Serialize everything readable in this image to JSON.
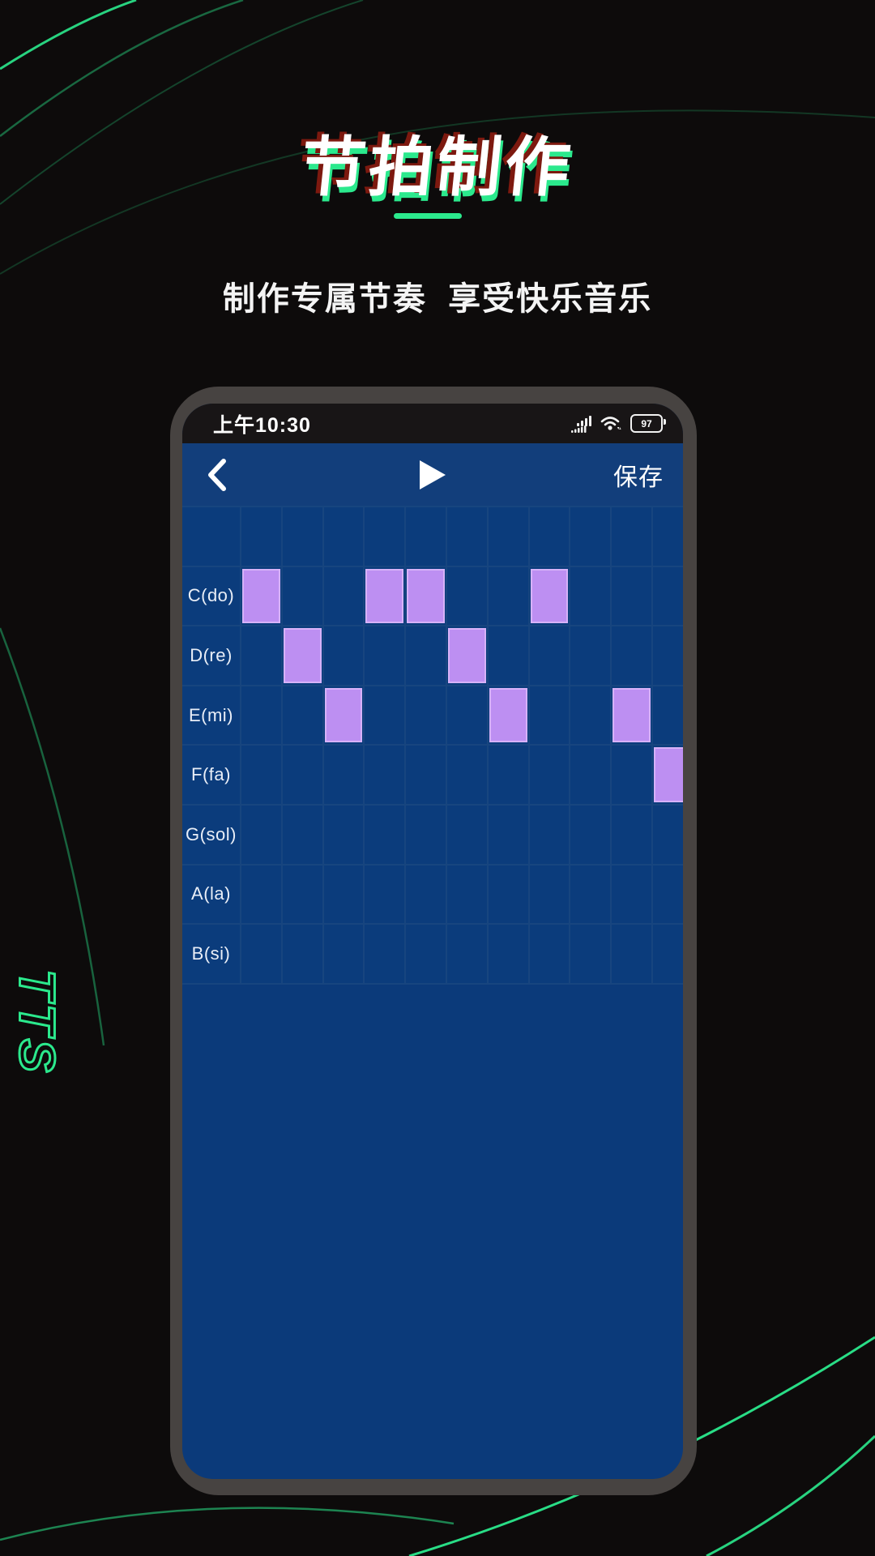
{
  "page": {
    "accent_green": "#2be98d",
    "background": "#0d0b0b"
  },
  "hero": {
    "title": "节拍制作",
    "subtitle": "制作专属节奏  享受快乐音乐",
    "watermark": "TTS"
  },
  "phone": {
    "status_bar": {
      "time": "上午10:30",
      "battery_percent": "97"
    },
    "toolbar": {
      "save_label": "保存",
      "background": "#123e7b"
    },
    "sequencer": {
      "row_labels": [
        "",
        "C(do)",
        "D(re)",
        "E(mi)",
        "F(fa)",
        "G(sol)",
        "A(la)",
        "B(si)"
      ],
      "columns": 11,
      "notes": [
        {
          "row": 1,
          "col": 0
        },
        {
          "row": 1,
          "col": 3
        },
        {
          "row": 1,
          "col": 4
        },
        {
          "row": 1,
          "col": 7
        },
        {
          "row": 2,
          "col": 1
        },
        {
          "row": 2,
          "col": 5
        },
        {
          "row": 3,
          "col": 2
        },
        {
          "row": 3,
          "col": 6
        },
        {
          "row": 3,
          "col": 9
        },
        {
          "row": 4,
          "col": 10
        }
      ],
      "colors": {
        "cell": "#0b3c7c",
        "grid_line": "#17457f",
        "note": "#bd8ff2",
        "note_border": "#d7b2f8",
        "screen": "#0b3a7a"
      }
    }
  }
}
